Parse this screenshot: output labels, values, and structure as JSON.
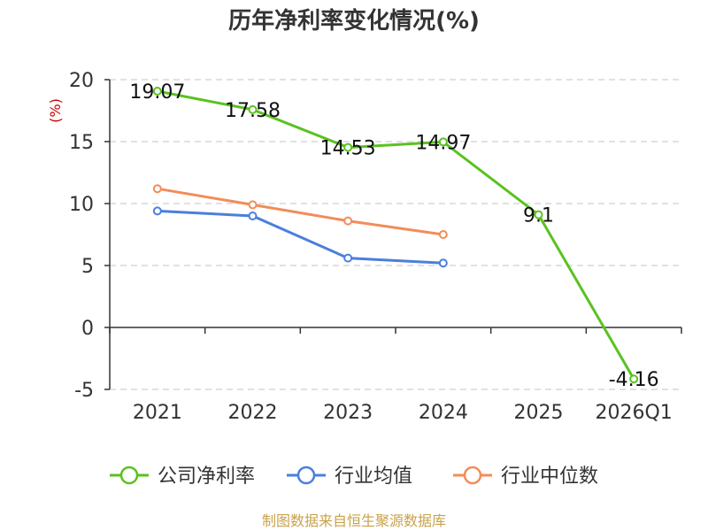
{
  "chart_data": {
    "type": "line",
    "title": "历年净利率变化情况(%)",
    "ylabel": "(%)",
    "xlabel": "",
    "categories": [
      "2021",
      "2022",
      "2023",
      "2024",
      "2025",
      "2026Q1"
    ],
    "ylim": [
      -5,
      20
    ],
    "yticks": [
      "20",
      "15",
      "10",
      "5",
      "0",
      "-5"
    ],
    "ytick_values": [
      20,
      15,
      10,
      5,
      0,
      -5
    ],
    "grid": true,
    "legend_position": "bottom",
    "series": [
      {
        "name": "公司净利率",
        "color": "#5ac21f",
        "values": [
          19.07,
          17.58,
          14.53,
          14.97,
          9.1,
          -4.16
        ],
        "labels": [
          "19.07",
          "17.58",
          "14.53",
          "14.97",
          "9.1",
          "-4.16"
        ]
      },
      {
        "name": "行业均值",
        "color": "#4a7fdc",
        "values": [
          9.4,
          9.0,
          5.6,
          5.2,
          null,
          null
        ]
      },
      {
        "name": "行业中位数",
        "color": "#f28c5a",
        "values": [
          11.2,
          9.9,
          8.6,
          7.5,
          null,
          null
        ]
      }
    ],
    "source": "制图数据来自恒生聚源数据库"
  }
}
